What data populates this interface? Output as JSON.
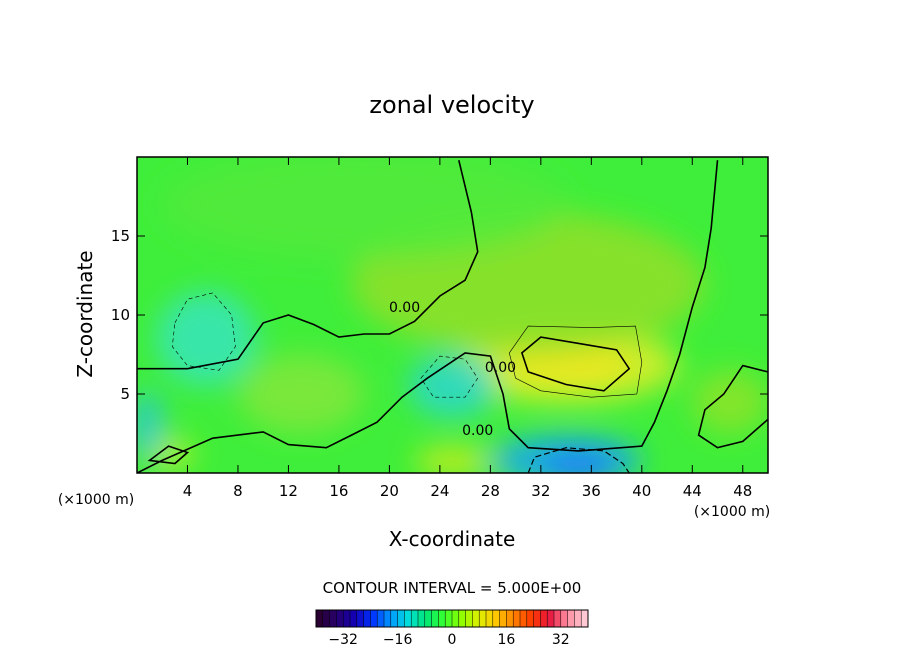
{
  "chart_data": {
    "type": "contour",
    "title": "zonal velocity",
    "xlabel": "X-coordinate",
    "ylabel": "Z-coordinate",
    "x_units": "(×1000 m)",
    "y_units": "(×1000 m)",
    "xlim": [
      0,
      50
    ],
    "ylim": [
      0,
      20
    ],
    "x_ticks": [
      4,
      8,
      12,
      16,
      20,
      24,
      28,
      32,
      36,
      40,
      44,
      48
    ],
    "y_ticks": [
      5,
      10,
      15
    ],
    "contour_interval_label": "CONTOUR INTERVAL = 5.000E+00",
    "contour_level_labels": [
      "0.00",
      "0.00",
      "0.00"
    ],
    "colorbar": {
      "range": [
        -40,
        40
      ],
      "ticks": [
        -32,
        -16,
        0,
        16,
        32
      ],
      "colors": [
        "#2a0033",
        "#26006e",
        "#1400b4",
        "#0032ff",
        "#0096ff",
        "#00dcdc",
        "#00e678",
        "#32ff32",
        "#8cff00",
        "#dcf000",
        "#ffc800",
        "#ff8200",
        "#ff3c00",
        "#e6143c",
        "#ff8ca0",
        "#ffc8d2"
      ]
    },
    "features": [
      {
        "kind": "max",
        "x": 34,
        "z": 7,
        "value": 15
      },
      {
        "kind": "min",
        "x": 5,
        "z": 8.5,
        "value": -5
      },
      {
        "kind": "min",
        "x": 25,
        "z": 6,
        "value": -5
      },
      {
        "kind": "min",
        "x": 34,
        "z": 0.5,
        "value": -15
      },
      {
        "kind": "max",
        "x": 2.5,
        "z": 1,
        "value": 8
      },
      {
        "kind": "max",
        "x": 25,
        "z": 0.5,
        "value": 8
      }
    ]
  }
}
